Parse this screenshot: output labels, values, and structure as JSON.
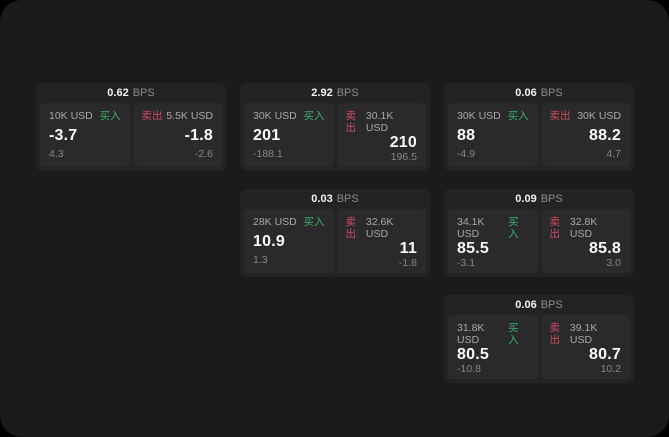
{
  "labels": {
    "bps": "BPS",
    "buy": "买入",
    "sell": "卖出"
  },
  "colors": {
    "buy_green": "#3fae68",
    "sell_red": "#cf4b62",
    "panel_background": "#1b1b1d",
    "card_background": "#232325",
    "pane_background": "#2a2a2c"
  },
  "cards": [
    {
      "bps": "0.62",
      "buy": {
        "amount": "10K USD",
        "value": "-3.7",
        "delta": "4.3"
      },
      "sell": {
        "amount": "5.5K USD",
        "value": "-1.8",
        "delta": "-2.6"
      }
    },
    {
      "bps": "2.92",
      "buy": {
        "amount": "30K USD",
        "value": "201",
        "delta": "-188.1"
      },
      "sell": {
        "amount": "30.1K USD",
        "value": "210",
        "delta": "196.5"
      }
    },
    {
      "bps": "0.06",
      "buy": {
        "amount": "30K USD",
        "value": "88",
        "delta": "-4.9"
      },
      "sell": {
        "amount": "30K USD",
        "value": "88.2",
        "delta": "4.7"
      }
    },
    {
      "bps": "0.03",
      "buy": {
        "amount": "28K USD",
        "value": "10.9",
        "delta": "1.3"
      },
      "sell": {
        "amount": "32.6K USD",
        "value": "11",
        "delta": "-1.8"
      }
    },
    {
      "bps": "0.09",
      "buy": {
        "amount": "34.1K USD",
        "value": "85.5",
        "delta": "-3.1"
      },
      "sell": {
        "amount": "32.8K USD",
        "value": "85.8",
        "delta": "3.0"
      }
    },
    {
      "bps": "0.06",
      "buy": {
        "amount": "31.8K USD",
        "value": "80.5",
        "delta": "-10.8"
      },
      "sell": {
        "amount": "39.1K USD",
        "value": "80.7",
        "delta": "10.2"
      }
    }
  ]
}
